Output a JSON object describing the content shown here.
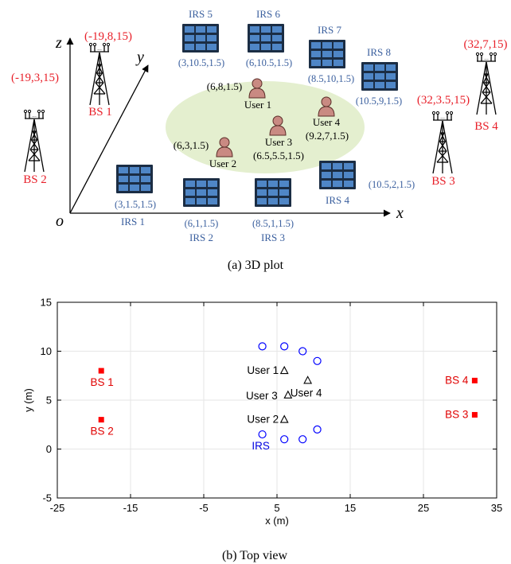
{
  "diagram_3d": {
    "axes": {
      "z": "z",
      "y": "y",
      "x": "x",
      "origin": "o"
    },
    "base_stations": [
      {
        "name": "BS 1",
        "coord": "(-19,8,15)"
      },
      {
        "name": "BS 2",
        "coord": "(-19,3,15)"
      },
      {
        "name": "BS 3",
        "coord": "(32,3.5,15)"
      },
      {
        "name": "BS 4",
        "coord": "(32,7,15)"
      }
    ],
    "irs": [
      {
        "name": "IRS 1",
        "coord": "(3,1.5,1.5)"
      },
      {
        "name": "IRS 2",
        "coord": "(6,1,1.5)"
      },
      {
        "name": "IRS 3",
        "coord": "(8.5,1,1.5)"
      },
      {
        "name": "IRS 4",
        "coord": "(10.5,2,1.5)"
      },
      {
        "name": "IRS 5",
        "coord": "(3,10.5,1.5)"
      },
      {
        "name": "IRS 6",
        "coord": "(6,10.5,1.5)"
      },
      {
        "name": "IRS 7",
        "coord": "(8.5,10,1.5)"
      },
      {
        "name": "IRS 8",
        "coord": "(10.5,9,1.5)"
      }
    ],
    "users": [
      {
        "name": "User 1",
        "coord": "(6,8,1.5)"
      },
      {
        "name": "User 2",
        "coord": "(6,3,1.5)"
      },
      {
        "name": "User 3",
        "coord": "(6.5,5.5,1.5)"
      },
      {
        "name": "User 4",
        "coord": "(9.2,7,1.5)"
      }
    ],
    "caption": "(a) 3D plot"
  },
  "chart_data": {
    "type": "scatter",
    "xlabel": "x (m)",
    "ylabel": "y (m)",
    "xlim": [
      -25,
      35
    ],
    "ylim": [
      -5,
      15
    ],
    "xticks": [
      -25,
      -15,
      -5,
      5,
      15,
      25,
      35
    ],
    "yticks": [
      -5,
      0,
      5,
      10,
      15
    ],
    "grid": true,
    "series": [
      {
        "name": "IRS",
        "marker": "circle",
        "color": "#0000ff",
        "points": [
          [
            3,
            1.5
          ],
          [
            6,
            1
          ],
          [
            8.5,
            1
          ],
          [
            10.5,
            2
          ],
          [
            3,
            10.5
          ],
          [
            6,
            10.5
          ],
          [
            8.5,
            10
          ],
          [
            10.5,
            9
          ]
        ]
      },
      {
        "marker": "triangle",
        "color": "#000000",
        "points": [
          [
            6,
            8
          ],
          [
            6,
            3
          ],
          [
            6.5,
            5.5
          ],
          [
            9.2,
            7
          ]
        ]
      },
      {
        "marker": "square",
        "color": "#ff0000",
        "points": [
          [
            -19,
            8
          ],
          [
            -19,
            3
          ],
          [
            32,
            3.5
          ],
          [
            32,
            7
          ]
        ]
      }
    ],
    "annotations": [
      {
        "text": "User 1",
        "x": 6,
        "y": 8
      },
      {
        "text": "User 2",
        "x": 6,
        "y": 3
      },
      {
        "text": "User 3",
        "x": 6.5,
        "y": 5.5
      },
      {
        "text": "User 4",
        "x": 9.2,
        "y": 7
      },
      {
        "text": "BS 1",
        "x": -19,
        "y": 8
      },
      {
        "text": "BS 2",
        "x": -19,
        "y": 3
      },
      {
        "text": "BS 3",
        "x": 32,
        "y": 3.5
      },
      {
        "text": "BS 4",
        "x": 32,
        "y": 7
      },
      {
        "text": "IRS",
        "x": 3,
        "y": 1.5
      }
    ],
    "caption": "(b) Top view"
  },
  "colors": {
    "bs": "#e8202a",
    "irs_panel": "#4f86c6",
    "irs_text": "#3a5f9e",
    "user": "#c98a82",
    "ellipse": "#e4efcf"
  }
}
